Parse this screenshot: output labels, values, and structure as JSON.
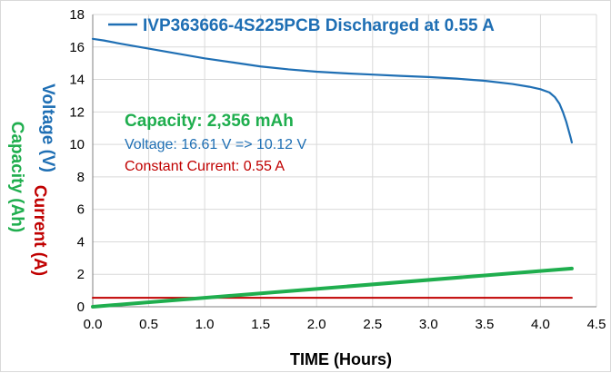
{
  "colors": {
    "voltage": "#1f6fb4",
    "capacity": "#1fae4e",
    "current": "#c00000",
    "axis": "#808080",
    "grid": "#d9d9d9"
  },
  "chart_data": {
    "type": "line",
    "xlabel": "TIME (Hours)",
    "ylabel_parts": [
      {
        "text": "Voltage (V)",
        "color": "#1f6fb4"
      },
      {
        "text": "Current (A)",
        "color": "#c00000"
      },
      {
        "text": "Capacity (Ah)",
        "color": "#1fae4e"
      }
    ],
    "xlim": [
      0,
      4.5
    ],
    "ylim": [
      0,
      18
    ],
    "xticks": [
      "0.0",
      "0.5",
      "1.0",
      "1.5",
      "2.0",
      "2.5",
      "3.0",
      "3.5",
      "4.0",
      "4.5"
    ],
    "yticks": [
      "0",
      "2",
      "4",
      "6",
      "8",
      "10",
      "12",
      "14",
      "16",
      "18"
    ],
    "grid": true,
    "legend_position": "top",
    "series": [
      {
        "name": "IVP363666-4S225PCB Discharged at 0.55 A",
        "key": "voltage",
        "color": "#1f6fb4",
        "x": [
          0,
          0.1,
          0.25,
          0.5,
          0.75,
          1.0,
          1.25,
          1.5,
          1.75,
          2.0,
          2.25,
          2.5,
          2.75,
          3.0,
          3.25,
          3.5,
          3.75,
          3.9,
          4.0,
          4.08,
          4.13,
          4.17,
          4.2,
          4.23,
          4.25,
          4.27,
          4.28
        ],
        "y": [
          16.5,
          16.4,
          16.2,
          15.9,
          15.6,
          15.3,
          15.05,
          14.8,
          14.62,
          14.48,
          14.38,
          14.3,
          14.22,
          14.15,
          14.05,
          13.92,
          13.72,
          13.55,
          13.4,
          13.2,
          12.9,
          12.5,
          12.0,
          11.4,
          10.9,
          10.4,
          10.12
        ]
      },
      {
        "key": "capacity",
        "color": "#1fae4e",
        "x": [
          0,
          4.28
        ],
        "y": [
          0,
          2.356
        ]
      },
      {
        "key": "current",
        "color": "#c00000",
        "x": [
          0,
          4.28
        ],
        "y": [
          0.55,
          0.55
        ]
      }
    ],
    "annotations": [
      {
        "text": "Capacity: 2,356 mAh",
        "color": "#1fae4e",
        "bold": true
      },
      {
        "text": "Voltage: 16.61 V => 10.12 V",
        "color": "#1f6fb4",
        "bold": false
      },
      {
        "text": "Constant Current: 0.55 A",
        "color": "#c00000",
        "bold": false
      }
    ]
  }
}
